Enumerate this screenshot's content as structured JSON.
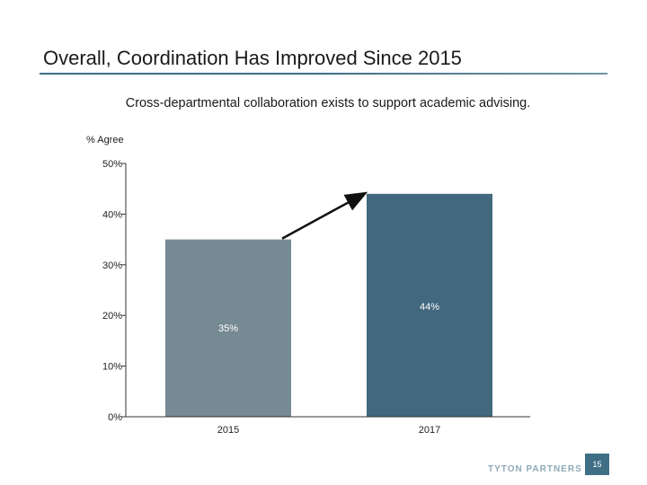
{
  "slide": {
    "title": "Overall, Coordination Has Improved Since 2015",
    "page_number": "15",
    "logo_text": "TYTON PARTNERS"
  },
  "colors": {
    "title_rule": "#3e6f84",
    "bar_2015": "#768a93",
    "bar_2017": "#41687d",
    "axis": "#333333",
    "page_badge": "#3e6f84",
    "logo": "#8fa9b8"
  },
  "chart_data": {
    "type": "bar",
    "title": "Cross-departmental collaboration exists to support academic advising.",
    "ylabel": "% Agree",
    "xlabel": "",
    "categories": [
      "2015",
      "2017"
    ],
    "values": [
      35,
      44
    ],
    "data_labels": [
      "35%",
      "44%"
    ],
    "ylim": [
      0,
      50
    ],
    "yticks": [
      0,
      10,
      20,
      30,
      40,
      50
    ],
    "ytick_labels": [
      "0%",
      "10%",
      "20%",
      "30%",
      "40%",
      "50%"
    ],
    "grid": false,
    "legend": "none",
    "annotation": "arrow from 2015 bar top to 2017 bar top"
  }
}
